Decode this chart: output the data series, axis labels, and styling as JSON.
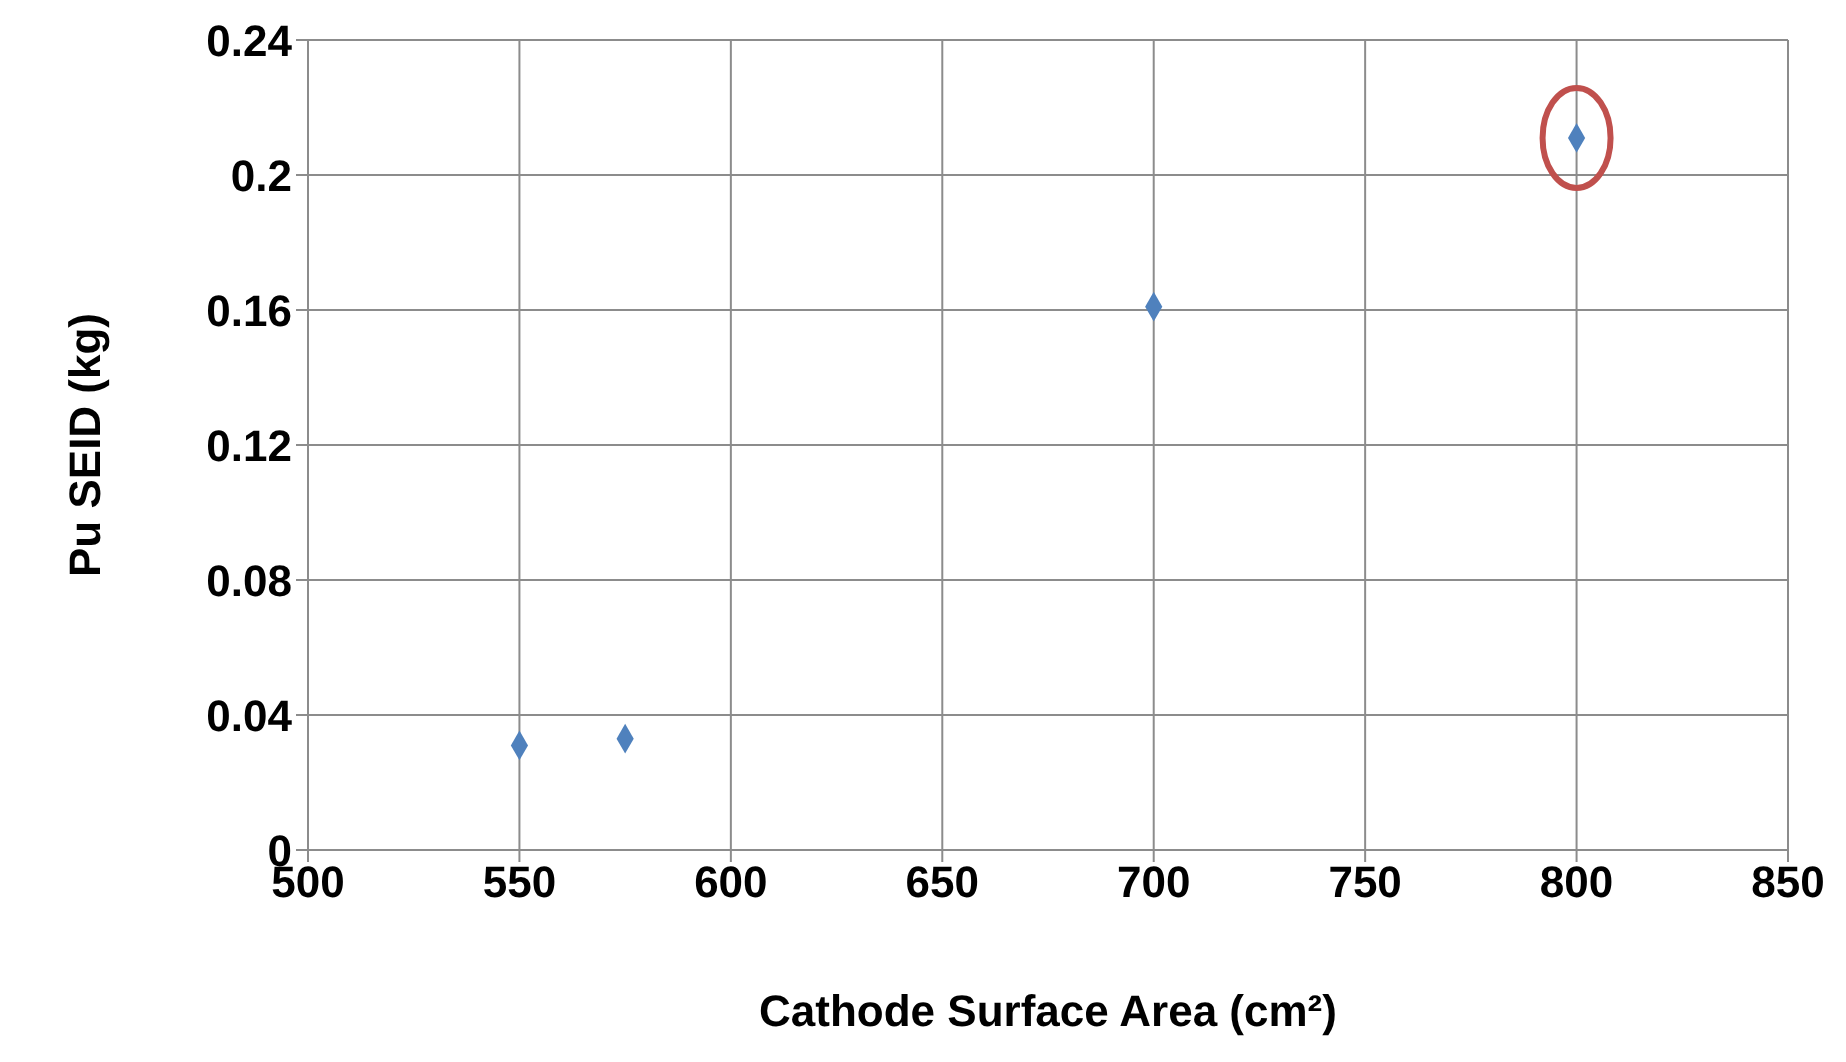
{
  "chart_data": {
    "type": "scatter",
    "xlabel": "Cathode Surface Area (cm²)",
    "ylabel": "Pu SEID (kg)",
    "x": [
      550,
      575,
      700,
      800
    ],
    "series": [
      {
        "color": "#4f81bd",
        "values": [
          0.031,
          0.033,
          0.161,
          0.211
        ]
      }
    ],
    "xlim": [
      500,
      850
    ],
    "xticks": [
      500,
      550,
      600,
      650,
      700,
      750,
      800,
      850
    ],
    "ylim": [
      0,
      0.24
    ],
    "yticks": [
      0,
      0.04,
      0.08,
      0.12,
      0.16,
      0.2,
      0.24
    ],
    "grid": true,
    "legend": false,
    "marker": "diamond"
  }
}
